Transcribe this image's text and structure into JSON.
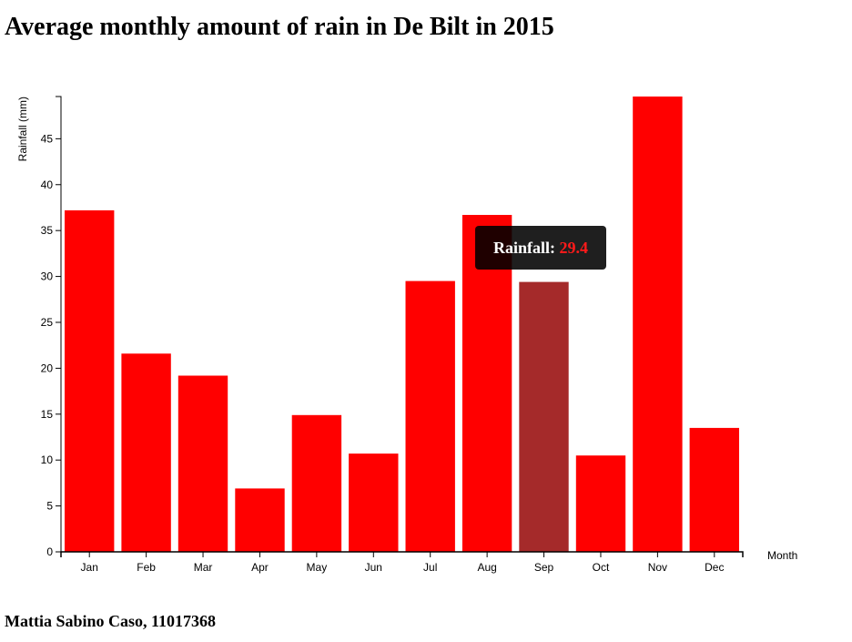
{
  "page": {
    "title": "Average monthly amount of rain in De Bilt in 2015",
    "footer": "Mattia Sabino Caso, 11017368"
  },
  "tooltip": {
    "label": "Rainfall: ",
    "value": "29.4"
  },
  "colors": {
    "bar": "#ff0000",
    "highlight": "#a52a2a",
    "axis": "#000000"
  },
  "chart_data": {
    "type": "bar",
    "categories": [
      "Jan",
      "Feb",
      "Mar",
      "Apr",
      "May",
      "Jun",
      "Jul",
      "Aug",
      "Sep",
      "Oct",
      "Nov",
      "Dec"
    ],
    "values": [
      37.2,
      21.6,
      19.2,
      6.9,
      14.9,
      10.7,
      29.5,
      36.7,
      29.4,
      10.5,
      49.6,
      13.5
    ],
    "highlighted": "Sep",
    "xlabel": "Month",
    "ylabel": "Rainfall (mm)",
    "ylim": [
      0,
      49.6
    ],
    "yticks": [
      0,
      5,
      10,
      15,
      20,
      25,
      30,
      35,
      40,
      45
    ],
    "grid": false,
    "legend": "none"
  }
}
